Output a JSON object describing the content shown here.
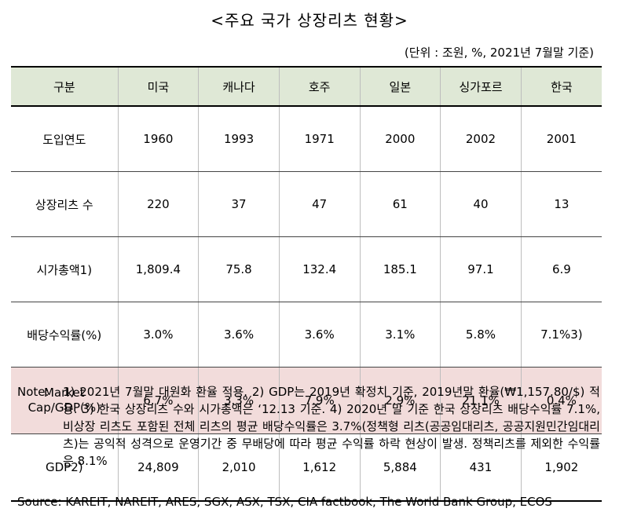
{
  "title": "<주요 국가 상장리츠 현황>",
  "unit": "(단위 : 조원, %, 2021년 7월말 기준)",
  "table": {
    "headers": [
      "구분",
      "미국",
      "캐나다",
      "호주",
      "일본",
      "싱가포르",
      "한국"
    ],
    "rows": [
      {
        "label": "도입연도",
        "values": [
          "1960",
          "1993",
          "1971",
          "2000",
          "2002",
          "2001"
        ]
      },
      {
        "label": "상장리츠 수",
        "values": [
          "220",
          "37",
          "47",
          "61",
          "40",
          "13"
        ]
      },
      {
        "label": "시가총액1)",
        "values": [
          "1,809.4",
          "75.8",
          "132.4",
          "185.1",
          "97.1",
          "6.9"
        ]
      },
      {
        "label": "배당수익률(%)",
        "values": [
          "3.0%",
          "3.6%",
          "3.6%",
          "3.1%",
          "5.8%",
          "7.1%3)"
        ]
      },
      {
        "label_line1": "Market",
        "label_line2": "Cap/GDP(%)",
        "values": [
          "6.7%",
          "3.3%",
          "7.9%",
          "2.9%",
          "21.1%",
          "0.4%"
        ]
      },
      {
        "label": "GDP2)",
        "values": [
          "24,809",
          "2,010",
          "1,612",
          "5,884",
          "431",
          "1,902"
        ]
      }
    ]
  },
  "note": {
    "label": "Note:",
    "text": "1) 2021년 7월말 대원화 환율 적용. 2) GDP는 2019년 확정치 기준, 2019년말 환율(₩1,157.80/$) 적용. 3) 한국 상장리츠 수와 시가총액은 ‘12.13 기준. 4) 2020년 말 기준 한국 상장리츠 배당수익률 7.1%, 비상장 리츠도 포함된 전체 리츠의 평균 배당수익률은 3.7%(정책형 리츠(공공임대리츠, 공공지원민간임대리츠)는 공익적 성격으로 운영기간 중 무배당에 따라 평균 수익률 하락 현상이 발생. 정책리츠를 제외한 수익률은 8.1%"
  },
  "source": "Source: KAREIT, NAREIT, ARES, SGX, ASX, TSX, CIA factbook, The World Bank Group, ECOS"
}
